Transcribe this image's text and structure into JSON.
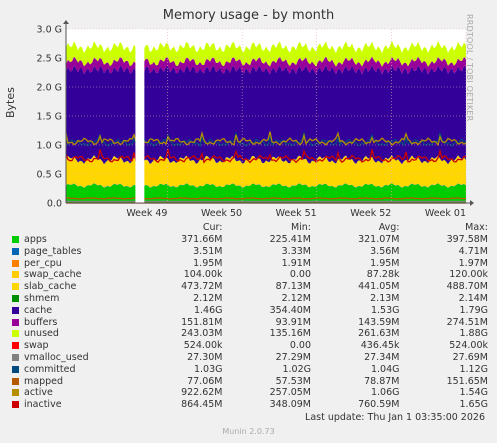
{
  "chart_data": {
    "type": "area",
    "title": "Memory usage - by month",
    "ylabel": "Bytes",
    "side_text": "RRDTOOL / TOBI OETIKER",
    "y_ticks": [
      "0.0",
      "0.5 G",
      "1.0 G",
      "1.5 G",
      "2.0 G",
      "2.5 G",
      "3.0 G"
    ],
    "ylim": [
      0,
      3.0
    ],
    "x_ticks": [
      "Week 49",
      "Week 50",
      "Week 51",
      "Week 52",
      "Week 01"
    ],
    "x_tick_positions": [
      1.36,
      2.36,
      3.36,
      4.36,
      5.36
    ],
    "xlim": [
      0,
      5.36
    ],
    "gap": [
      0.93,
      1.05
    ],
    "grid": true,
    "stack": [
      {
        "name": "apps",
        "color": "#00cc00",
        "avg": 0.3,
        "amp": 0.04
      },
      {
        "name": "page_tables",
        "color": "#0066b3",
        "avg": 0.0035,
        "amp": 0
      },
      {
        "name": "per_cpu",
        "color": "#ff8000",
        "avg": 0.0019,
        "amp": 0
      },
      {
        "name": "swap_cache",
        "color": "#ffcc00",
        "avg": 0.0001,
        "amp": 0
      },
      {
        "name": "slab_cache",
        "color": "#ffd700",
        "avg": 0.44,
        "amp": 0.04
      },
      {
        "name": "shmem",
        "color": "#008f00",
        "avg": 0.0021,
        "amp": 0
      },
      {
        "name": "cache",
        "color": "#330099",
        "avg": 1.55,
        "amp": 0.07
      },
      {
        "name": "buffers",
        "color": "#990099",
        "avg": 0.14,
        "amp": 0.04
      },
      {
        "name": "unused",
        "color": "#ccff00",
        "avg": 0.25,
        "amp": 0.04
      }
    ],
    "lines": [
      {
        "name": "swap",
        "color": "#ff0000",
        "avg": 0.0004
      },
      {
        "name": "vmalloc_used",
        "color": "#808080",
        "avg": 0.027
      },
      {
        "name": "committed",
        "color": "#004a7f",
        "avg": 1.04
      },
      {
        "name": "mapped",
        "color": "#b35a00",
        "avg": 0.079
      },
      {
        "name": "active",
        "color": "#b38f00",
        "avg": 1.06
      },
      {
        "name": "inactive",
        "color": "#cc0000",
        "avg": 0.76
      }
    ]
  },
  "legend": {
    "headers": [
      "Cur:",
      "Min:",
      "Avg:",
      "Max:"
    ],
    "rows": [
      {
        "name": "apps",
        "color": "#00cc00",
        "cur": "371.66M",
        "min": "225.41M",
        "avg": "321.07M",
        "max": "397.58M"
      },
      {
        "name": "page_tables",
        "color": "#0066b3",
        "cur": "3.51M",
        "min": "3.33M",
        "avg": "3.56M",
        "max": "4.71M"
      },
      {
        "name": "per_cpu",
        "color": "#ff8000",
        "cur": "1.95M",
        "min": "1.91M",
        "avg": "1.95M",
        "max": "1.97M"
      },
      {
        "name": "swap_cache",
        "color": "#ffcc00",
        "cur": "104.00k",
        "min": "0.00",
        "avg": "87.28k",
        "max": "120.00k"
      },
      {
        "name": "slab_cache",
        "color": "#ffd700",
        "cur": "473.72M",
        "min": "87.13M",
        "avg": "441.05M",
        "max": "488.70M"
      },
      {
        "name": "shmem",
        "color": "#008f00",
        "cur": "2.12M",
        "min": "2.12M",
        "avg": "2.13M",
        "max": "2.14M"
      },
      {
        "name": "cache",
        "color": "#330099",
        "cur": "1.46G",
        "min": "354.40M",
        "avg": "1.53G",
        "max": "1.79G"
      },
      {
        "name": "buffers",
        "color": "#990099",
        "cur": "151.81M",
        "min": "93.91M",
        "avg": "143.59M",
        "max": "274.51M"
      },
      {
        "name": "unused",
        "color": "#ccff00",
        "cur": "243.03M",
        "min": "135.16M",
        "avg": "261.63M",
        "max": "1.88G"
      },
      {
        "name": "swap",
        "color": "#ff0000",
        "cur": "524.00k",
        "min": "0.00",
        "avg": "436.45k",
        "max": "524.00k"
      },
      {
        "name": "vmalloc_used",
        "color": "#808080",
        "cur": "27.30M",
        "min": "27.29M",
        "avg": "27.34M",
        "max": "27.69M"
      },
      {
        "name": "committed",
        "color": "#004a7f",
        "cur": "1.03G",
        "min": "1.02G",
        "avg": "1.04G",
        "max": "1.12G"
      },
      {
        "name": "mapped",
        "color": "#b35a00",
        "cur": "77.06M",
        "min": "57.53M",
        "avg": "78.87M",
        "max": "151.65M"
      },
      {
        "name": "active",
        "color": "#b38f00",
        "cur": "922.62M",
        "min": "257.05M",
        "avg": "1.06G",
        "max": "1.54G"
      },
      {
        "name": "inactive",
        "color": "#cc0000",
        "cur": "864.45M",
        "min": "348.09M",
        "avg": "760.59M",
        "max": "1.65G"
      }
    ]
  },
  "last_update": "Last update: Thu Jan  1 03:35:00 2026",
  "footer": "Munin 2.0.73"
}
